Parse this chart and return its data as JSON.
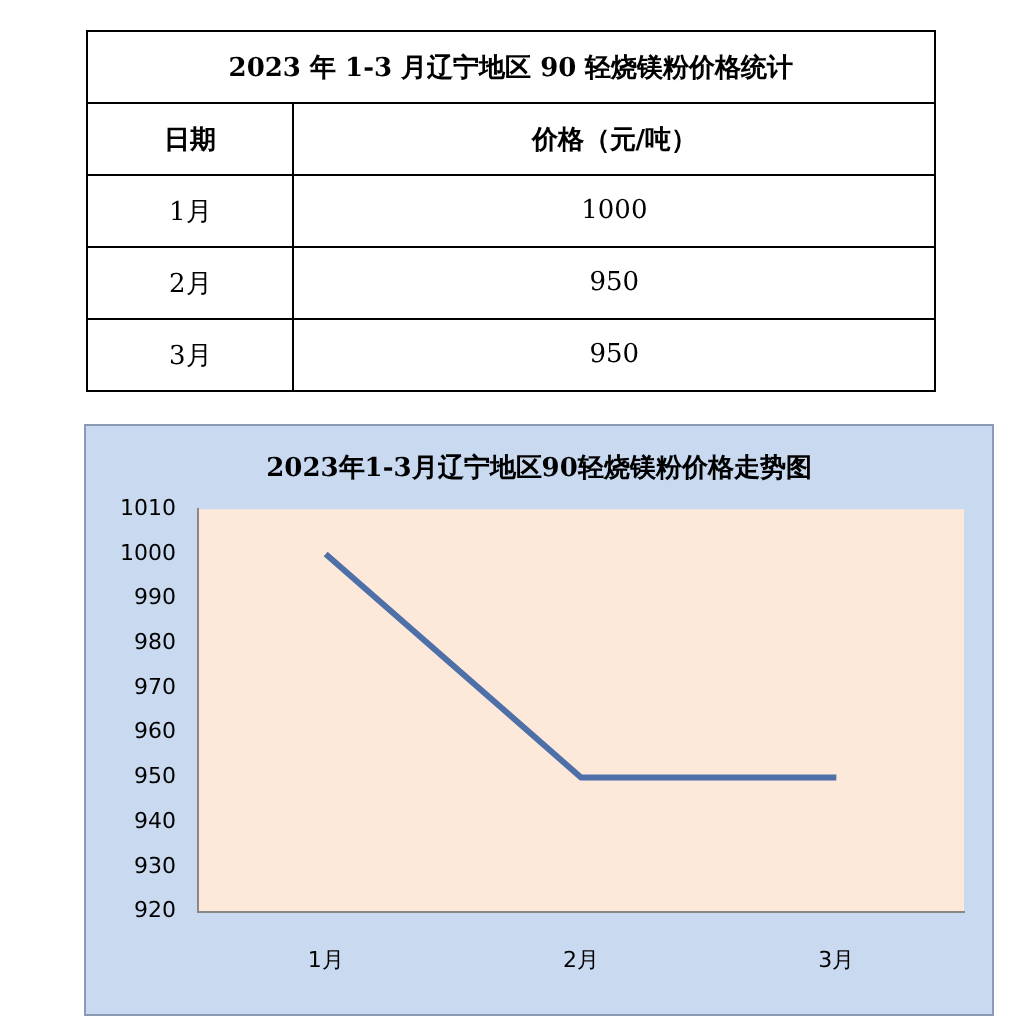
{
  "chart_data": {
    "type": "line",
    "title": "2023年1-3月辽宁地区90轻烧镁粉价格走势图",
    "categories": [
      "1月",
      "2月",
      "3月"
    ],
    "series": [
      {
        "color": "#4f6fa8",
        "values": [
          1000,
          950,
          950
        ]
      }
    ],
    "ylim": [
      920,
      1010
    ],
    "yticks": [
      920,
      930,
      940,
      950,
      960,
      970,
      980,
      990,
      1000,
      1010
    ],
    "grid": false,
    "legend": false,
    "marker": "none",
    "annotations": [
      "2023 年 1-3 月辽宁地区 90 轻烧镁粉价格统计",
      "日期",
      "价格（元/吨）",
      "1000",
      "950",
      "950"
    ]
  }
}
